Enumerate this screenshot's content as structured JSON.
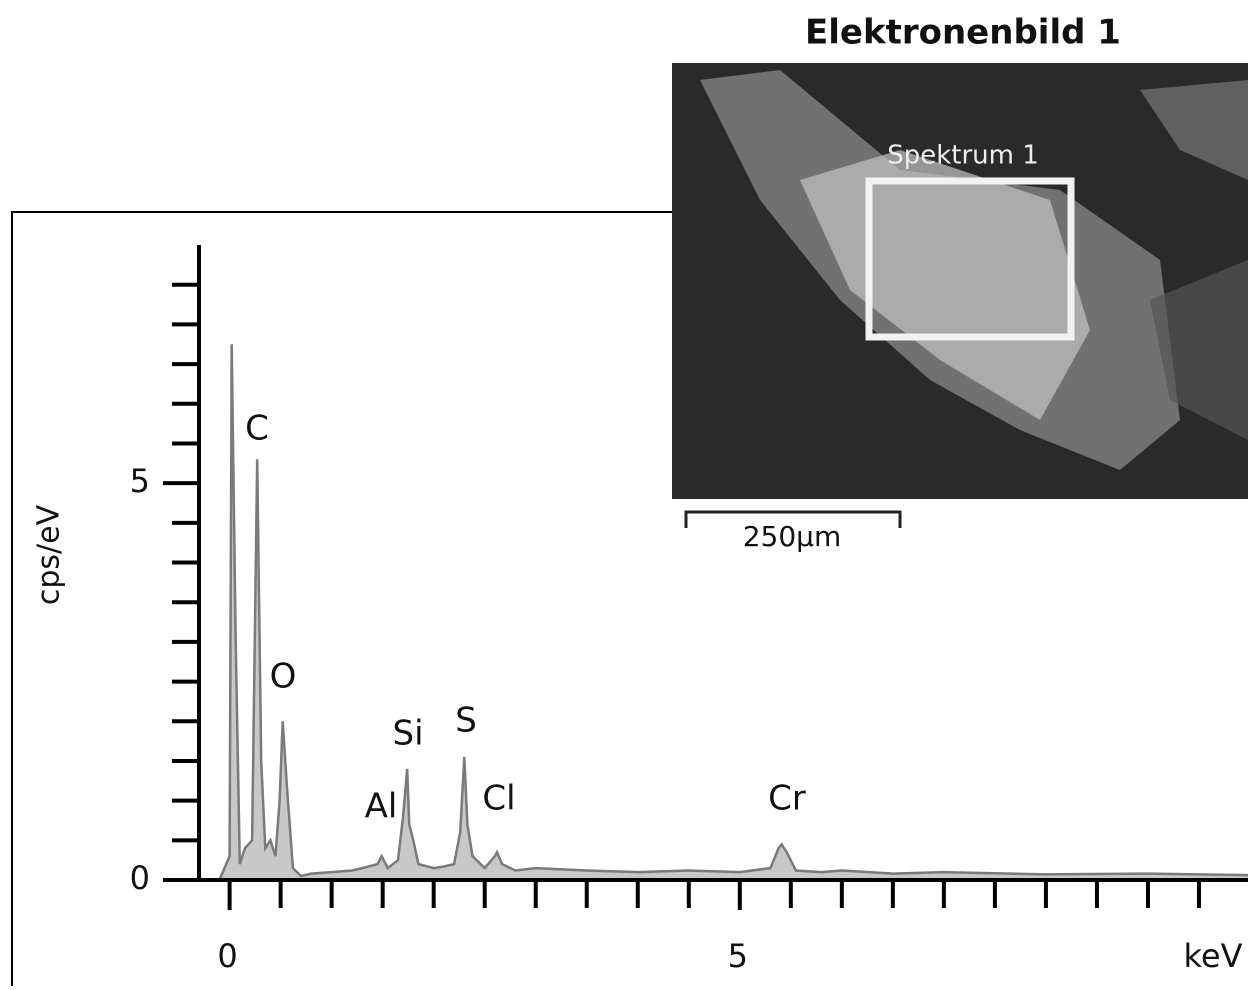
{
  "chart_data": {
    "type": "area",
    "image_title": "Elektronenbild 1",
    "image_region": "Spektrum 1",
    "scale_bar": "250µm",
    "xlabel": "keV",
    "ylabel": "cps/eV",
    "xlim": [
      -0.3,
      10
    ],
    "ylim": [
      0,
      8
    ],
    "xticks": [
      0,
      5
    ],
    "yticks": [
      0,
      5
    ],
    "xminorticks": [
      0.5,
      1,
      1.5,
      2,
      2.5,
      3,
      3.5,
      4,
      4.5,
      5.5,
      6,
      6.5,
      7,
      7.5,
      8,
      8.5,
      9,
      9.5
    ],
    "yminorticks": [
      0.5,
      1,
      1.5,
      2,
      2.5,
      3,
      3.5,
      4,
      4.5,
      5.5,
      6,
      6.5,
      7,
      7.5
    ],
    "peak_labels": [
      "C",
      "O",
      "Al",
      "Si",
      "S",
      "Cl",
      "Cr"
    ],
    "series": [
      {
        "name": "Spektrum 1",
        "color": "#7a7a7a",
        "x": [
          -0.1,
          0.0,
          0.02,
          0.06,
          0.1,
          0.15,
          0.22,
          0.27,
          0.31,
          0.35,
          0.4,
          0.45,
          0.49,
          0.52,
          0.56,
          0.62,
          0.7,
          0.8,
          1.0,
          1.2,
          1.3,
          1.45,
          1.49,
          1.55,
          1.65,
          1.7,
          1.74,
          1.76,
          1.8,
          1.85,
          2.0,
          2.1,
          2.2,
          2.26,
          2.3,
          2.33,
          2.38,
          2.5,
          2.6,
          2.62,
          2.67,
          2.8,
          3.0,
          3.5,
          4.0,
          4.5,
          5.0,
          5.3,
          5.38,
          5.41,
          5.46,
          5.55,
          5.8,
          6.0,
          6.5,
          7.0,
          8.0,
          9.0,
          10
        ],
        "values": [
          0,
          0.3,
          6.75,
          3,
          0.2,
          0.4,
          0.5,
          5.3,
          1.5,
          0.4,
          0.5,
          0.3,
          1.0,
          2.0,
          1.2,
          0.15,
          0.05,
          0.08,
          0.1,
          0.12,
          0.15,
          0.2,
          0.3,
          0.15,
          0.25,
          0.8,
          1.4,
          0.7,
          0.5,
          0.2,
          0.15,
          0.17,
          0.2,
          0.6,
          1.55,
          0.7,
          0.3,
          0.15,
          0.3,
          0.35,
          0.2,
          0.12,
          0.15,
          0.12,
          0.1,
          0.12,
          0.1,
          0.15,
          0.4,
          0.45,
          0.35,
          0.12,
          0.1,
          0.12,
          0.08,
          0.1,
          0.07,
          0.08,
          0.06
        ]
      }
    ]
  }
}
